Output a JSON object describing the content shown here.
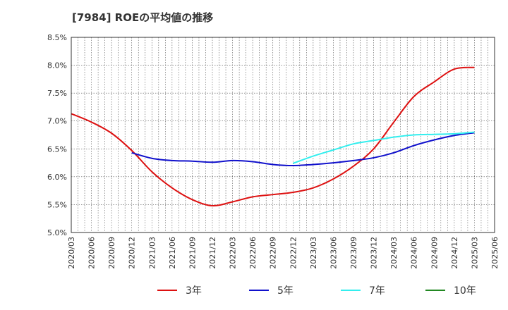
{
  "header": {
    "title": "[7984]  ROEの平均値の推移"
  },
  "chart_data": {
    "type": "line",
    "title": "[7984]  ROEの平均値の推移",
    "xlabel": "",
    "ylabel": "",
    "ylim": [
      5.0,
      8.5
    ],
    "grid": true,
    "legend_position": "bottom",
    "y_ticks": [
      "5.0%",
      "5.5%",
      "6.0%",
      "6.5%",
      "7.0%",
      "7.5%",
      "8.0%",
      "8.5%"
    ],
    "x_ticks": [
      "2020/03",
      "2020/06",
      "2020/09",
      "2020/12",
      "2021/03",
      "2021/06",
      "2021/09",
      "2021/12",
      "2022/03",
      "2022/06",
      "2022/09",
      "2022/12",
      "2023/03",
      "2023/06",
      "2023/09",
      "2023/12",
      "2024/03",
      "2024/06",
      "2024/09",
      "2024/12",
      "2025/03",
      "2025/06"
    ],
    "series": [
      {
        "name": "3年",
        "color": "#dd1111",
        "x": [
          "2020/03",
          "2020/06",
          "2020/09",
          "2020/12",
          "2021/03",
          "2021/06",
          "2021/09",
          "2021/12",
          "2022/03",
          "2022/06",
          "2022/09",
          "2022/12",
          "2023/03",
          "2023/06",
          "2023/09",
          "2023/12",
          "2024/03",
          "2024/06",
          "2024/09",
          "2024/12",
          "2025/03"
        ],
        "values": [
          7.13,
          6.98,
          6.78,
          6.47,
          6.09,
          5.8,
          5.59,
          5.48,
          5.55,
          5.64,
          5.68,
          5.72,
          5.8,
          5.96,
          6.19,
          6.5,
          6.98,
          7.44,
          7.7,
          7.93,
          7.96
        ]
      },
      {
        "name": "5年",
        "color": "#1111cc",
        "x": [
          "2020/12",
          "2021/03",
          "2021/06",
          "2021/09",
          "2021/12",
          "2022/03",
          "2022/06",
          "2022/09",
          "2022/12",
          "2023/03",
          "2023/06",
          "2023/09",
          "2023/12",
          "2024/03",
          "2024/06",
          "2024/09",
          "2024/12",
          "2025/03"
        ],
        "values": [
          6.43,
          6.33,
          6.29,
          6.28,
          6.26,
          6.29,
          6.27,
          6.22,
          6.2,
          6.22,
          6.25,
          6.29,
          6.34,
          6.43,
          6.56,
          6.66,
          6.74,
          6.79
        ]
      },
      {
        "name": "7年",
        "color": "#33eeee",
        "x": [
          "2022/12",
          "2023/03",
          "2023/06",
          "2023/09",
          "2023/12",
          "2024/03",
          "2024/06",
          "2024/09",
          "2024/12",
          "2025/03"
        ],
        "values": [
          6.24,
          6.37,
          6.48,
          6.59,
          6.65,
          6.71,
          6.75,
          6.76,
          6.77,
          6.8
        ]
      },
      {
        "name": "10年",
        "color": "#228822",
        "x": [],
        "values": []
      }
    ]
  }
}
